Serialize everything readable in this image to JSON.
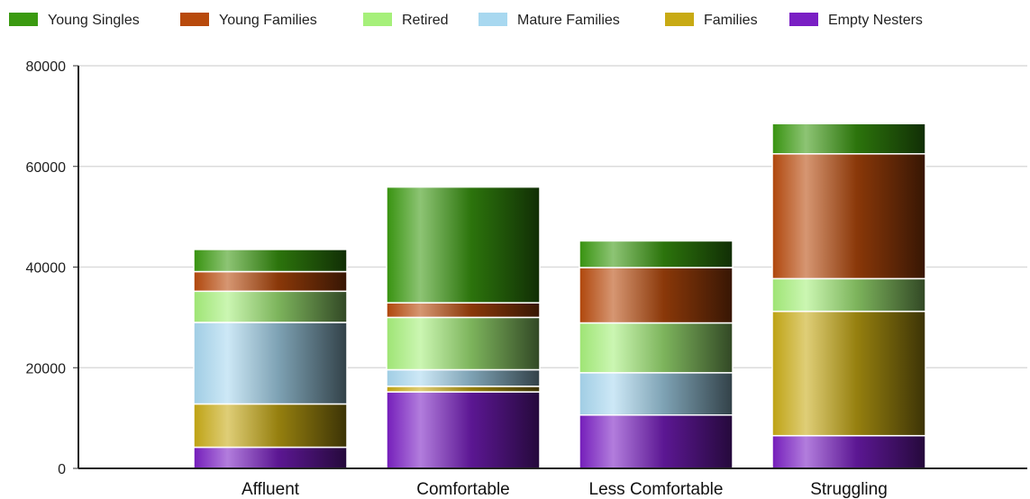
{
  "chart_data": {
    "type": "bar",
    "stacked": true,
    "categories": [
      "Affluent",
      "Comfortable",
      "Less Comfortable",
      "Struggling"
    ],
    "ylim": [
      0,
      80000
    ],
    "yticks": [
      "0",
      "20000",
      "40000",
      "60000",
      "80000"
    ],
    "ytick_values": [
      0,
      20000,
      40000,
      60000,
      80000
    ],
    "grid": true,
    "legend": "top-left",
    "series": [
      {
        "name": "Empty Nesters",
        "color": "#7a1fc4",
        "values": [
          4200,
          15200,
          10600,
          6500
        ]
      },
      {
        "name": "Families",
        "color": "#c8aa14",
        "values": [
          8600,
          1100,
          0,
          24700
        ]
      },
      {
        "name": "Mature Families",
        "color": "#a8d8f0",
        "values": [
          16200,
          3300,
          8400,
          0
        ]
      },
      {
        "name": "Retired",
        "color": "#a6f07a",
        "values": [
          6200,
          10400,
          9900,
          6500
        ]
      },
      {
        "name": "Young Families",
        "color": "#b84a0c",
        "values": [
          3900,
          2900,
          11000,
          24800
        ]
      },
      {
        "name": "Young Singles",
        "color": "#3a9a10",
        "values": [
          4400,
          23000,
          5300,
          6000
        ]
      }
    ],
    "legend_order": [
      "Young Singles",
      "Young Families",
      "Retired",
      "Mature Families",
      "Families",
      "Empty Nesters"
    ]
  }
}
